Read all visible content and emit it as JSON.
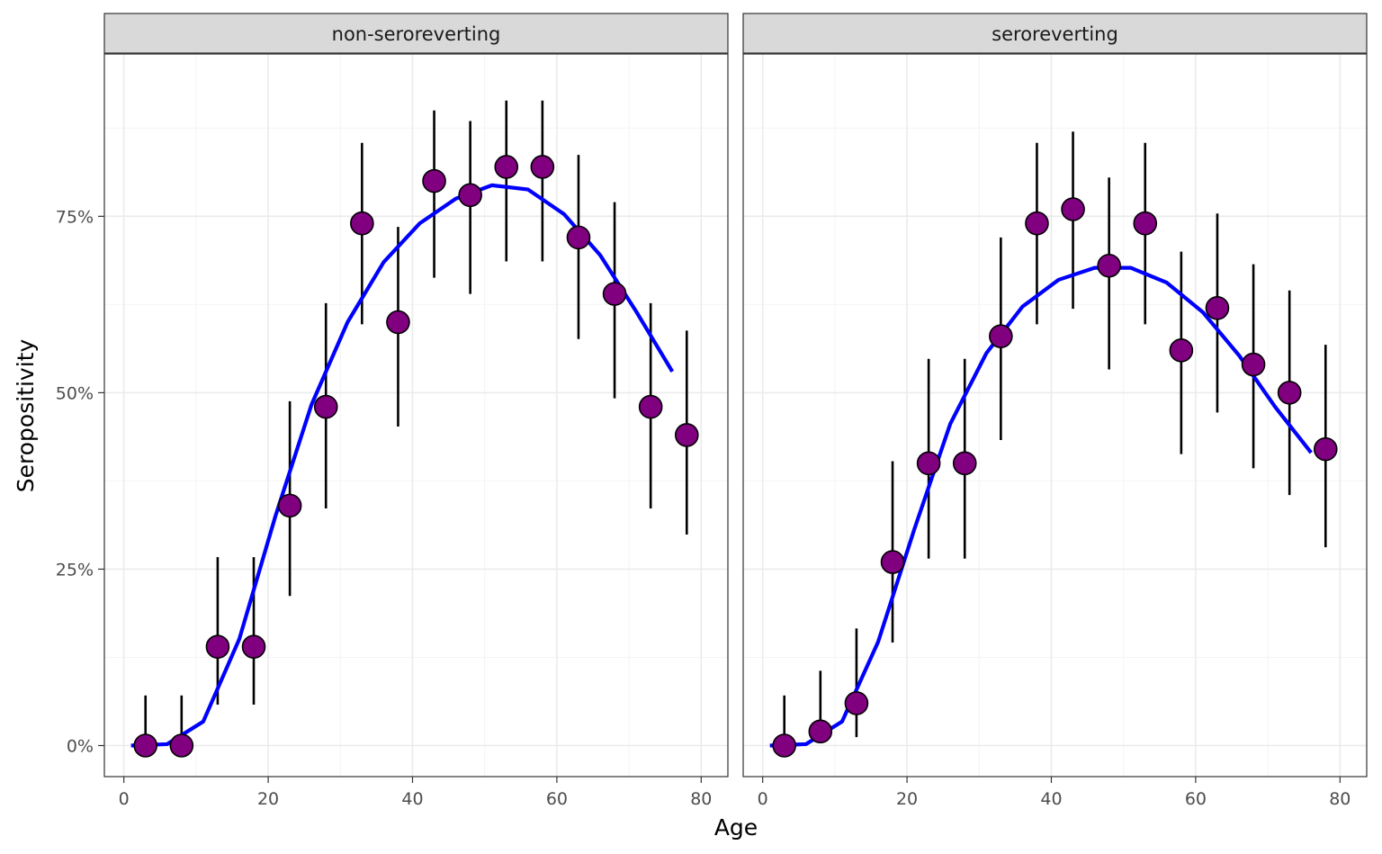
{
  "chart_data": {
    "type": "scatter",
    "xlabel": "Age",
    "ylabel": "Seropositivity",
    "xlim": [
      -2.7,
      83.7
    ],
    "ylim": [
      -0.044,
      0.98
    ],
    "x_ticks": [
      0,
      20,
      40,
      60,
      80
    ],
    "x_tick_labels": [
      "0",
      "20",
      "40",
      "60",
      "80"
    ],
    "y_ticks": [
      0,
      0.25,
      0.5,
      0.75
    ],
    "y_tick_labels": [
      "0%",
      "25%",
      "50%",
      "75%"
    ],
    "grid": true,
    "legend": "none",
    "colors": {
      "point_fill": "#800080",
      "point_stroke": "#000000",
      "line": "#0000FF",
      "errorbar": "#000000",
      "strip_bg": "#D9D9D9",
      "grid_major": "#EBEBEB",
      "grid_minor": "#F4F4F4",
      "panel_border": "#333333"
    },
    "panels": [
      {
        "strip": "non-seroreverting",
        "points": {
          "x": [
            3,
            8,
            13,
            18,
            23,
            28,
            33,
            38,
            43,
            48,
            53,
            58,
            63,
            68,
            73,
            78
          ],
          "y": [
            0,
            0,
            0.14,
            0.14,
            0.34,
            0.48,
            0.74,
            0.6,
            0.8,
            0.78,
            0.82,
            0.82,
            0.72,
            0.64,
            0.48,
            0.44
          ],
          "lower": [
            0,
            0,
            0.058,
            0.058,
            0.212,
            0.336,
            0.597,
            0.452,
            0.663,
            0.64,
            0.686,
            0.686,
            0.576,
            0.492,
            0.336,
            0.299
          ],
          "upper": [
            0.071,
            0.071,
            0.267,
            0.267,
            0.488,
            0.627,
            0.854,
            0.735,
            0.9,
            0.885,
            0.914,
            0.914,
            0.837,
            0.77,
            0.627,
            0.588
          ]
        },
        "fit": {
          "x": [
            1,
            6,
            11,
            16,
            21,
            26,
            31,
            36,
            41,
            46,
            51,
            56,
            61,
            66,
            71,
            76
          ],
          "y": [
            0,
            0.002,
            0.034,
            0.151,
            0.325,
            0.483,
            0.6,
            0.685,
            0.74,
            0.775,
            0.794,
            0.788,
            0.753,
            0.695,
            0.615,
            0.53
          ]
        }
      },
      {
        "strip": "seroreverting",
        "points": {
          "x": [
            3,
            8,
            13,
            18,
            23,
            28,
            33,
            38,
            43,
            48,
            53,
            58,
            63,
            68,
            73,
            78
          ],
          "y": [
            0,
            0.02,
            0.06,
            0.26,
            0.4,
            0.4,
            0.58,
            0.74,
            0.76,
            0.68,
            0.74,
            0.56,
            0.62,
            0.54,
            0.5,
            0.42
          ],
          "lower": [
            0,
            0.004,
            0.012,
            0.146,
            0.265,
            0.265,
            0.433,
            0.597,
            0.619,
            0.533,
            0.597,
            0.413,
            0.472,
            0.393,
            0.355,
            0.281
          ],
          "upper": [
            0.071,
            0.106,
            0.166,
            0.403,
            0.548,
            0.548,
            0.72,
            0.854,
            0.87,
            0.805,
            0.854,
            0.7,
            0.754,
            0.682,
            0.645,
            0.568
          ]
        },
        "fit": {
          "x": [
            1,
            6,
            11,
            16,
            21,
            26,
            31,
            36,
            41,
            46,
            51,
            56,
            61,
            66,
            71,
            76
          ],
          "y": [
            0,
            0.002,
            0.034,
            0.147,
            0.306,
            0.456,
            0.556,
            0.622,
            0.66,
            0.677,
            0.677,
            0.656,
            0.614,
            0.553,
            0.48,
            0.415
          ]
        }
      }
    ]
  }
}
